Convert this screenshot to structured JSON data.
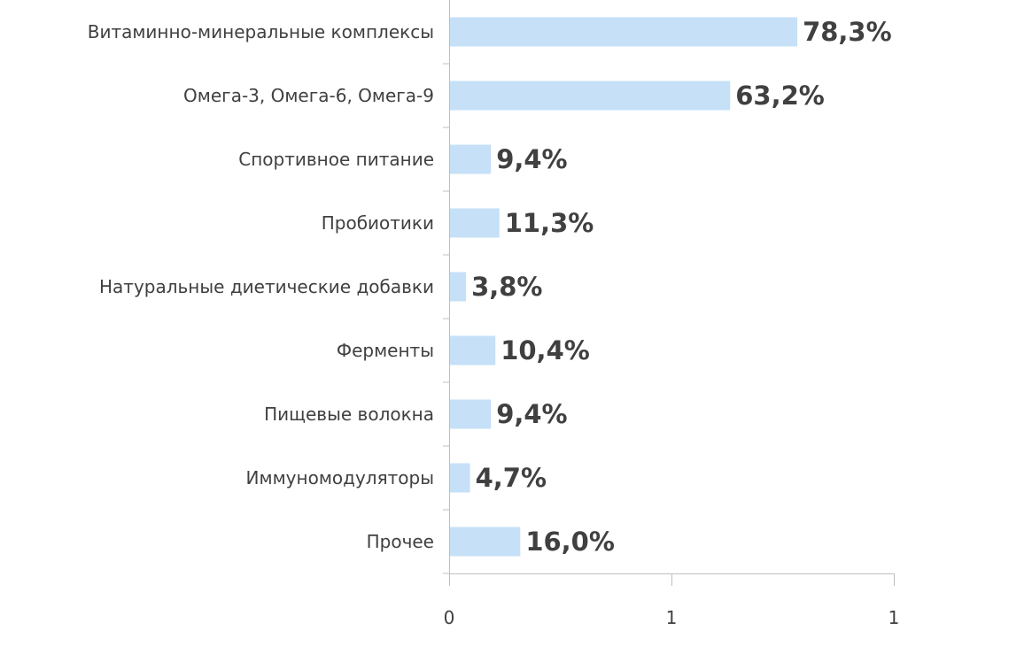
{
  "chart_data": {
    "type": "bar",
    "orientation": "horizontal",
    "categories": [
      "Витаминно-минеральные комплексы",
      "Омега-3, Омега-6, Омега-9",
      "Спортивное питание",
      "Пробиотики",
      "Натуральные диетические добавки",
      "Ферменты",
      "Пищевые волокна",
      "Иммуномодуляторы",
      "Прочее"
    ],
    "values": [
      0.783,
      0.632,
      0.094,
      0.113,
      0.038,
      0.104,
      0.094,
      0.047,
      0.16
    ],
    "value_labels": [
      "78,3%",
      "63,2%",
      "9,4%",
      "11,3%",
      "3,8%",
      "10,4%",
      "9,4%",
      "4,7%",
      "16,0%"
    ],
    "xlim": [
      0,
      1
    ],
    "x_ticks": [
      0,
      0.5,
      1
    ],
    "x_tick_labels": [
      "0",
      "1",
      "1"
    ],
    "grid": false,
    "bar_color": "#c5e0f7",
    "axis_color": "#bfbfbf",
    "text_color": "#404040"
  }
}
